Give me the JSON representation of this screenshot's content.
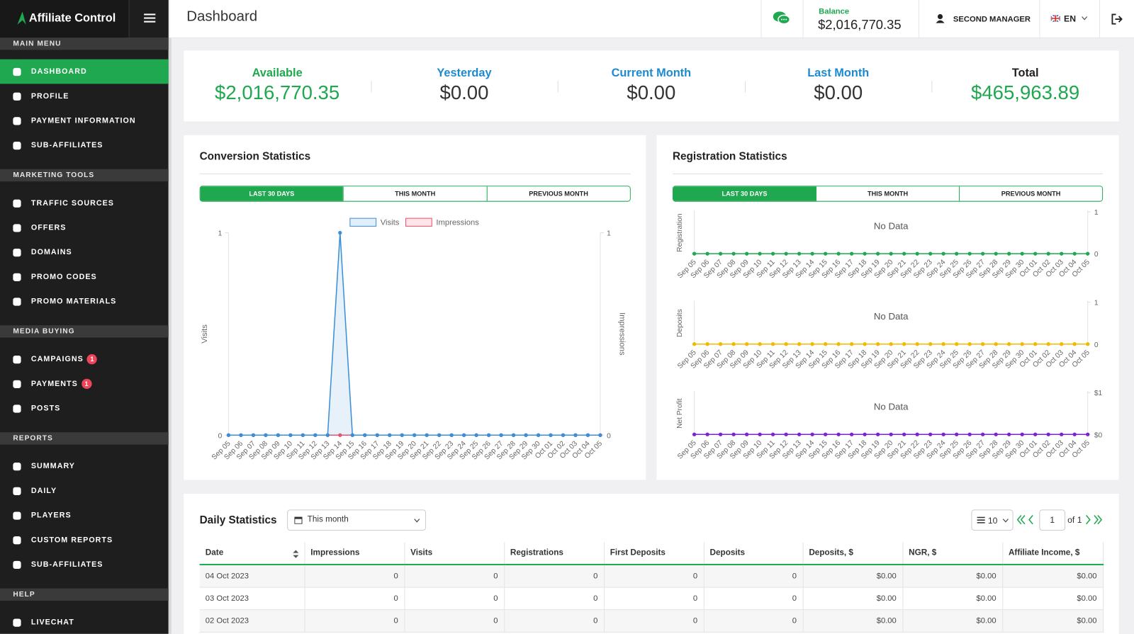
{
  "header": {
    "logo": "Affiliate Control",
    "title": "Dashboard",
    "balance_label": "Balance",
    "balance": "$2,016,770.35",
    "user": "SECOND MANAGER",
    "language": "EN"
  },
  "sidebar": [
    {
      "title": "MAIN MENU",
      "items": [
        {
          "label": "DASHBOARD",
          "active": true
        },
        {
          "label": "PROFILE"
        },
        {
          "label": "PAYMENT INFORMATION"
        },
        {
          "label": "SUB-AFFILIATES"
        }
      ]
    },
    {
      "title": "MARKETING TOOLS",
      "items": [
        {
          "label": "TRAFFIC SOURCES"
        },
        {
          "label": "OFFERS"
        },
        {
          "label": "DOMAINS"
        },
        {
          "label": "PROMO CODES"
        },
        {
          "label": "PROMO MATERIALS"
        }
      ]
    },
    {
      "title": "MEDIA BUYING",
      "items": [
        {
          "label": "CAMPAIGNS",
          "badge": 1
        },
        {
          "label": "PAYMENTS",
          "badge": 1
        },
        {
          "label": "POSTS"
        }
      ]
    },
    {
      "title": "REPORTS",
      "items": [
        {
          "label": "SUMMARY"
        },
        {
          "label": "DAILY"
        },
        {
          "label": "PLAYERS"
        },
        {
          "label": "CUSTOM REPORTS"
        },
        {
          "label": "SUB-AFFILIATES"
        }
      ]
    },
    {
      "title": "HELP",
      "items": [
        {
          "label": "LIVECHAT"
        }
      ]
    }
  ],
  "summary": [
    {
      "label": "Available",
      "value": "$2,016,770.35"
    },
    {
      "label": "Yesterday",
      "value": "$0.00"
    },
    {
      "label": "Current Month",
      "value": "$0.00"
    },
    {
      "label": "Last Month",
      "value": "$0.00"
    },
    {
      "label": "Total",
      "value": "$465,963.89"
    }
  ],
  "conversion": {
    "type": "line",
    "title": "Conversion Statistics",
    "tabs": [
      "LAST 30 DAYS",
      "THIS MONTH",
      "PREVIOUS MONTH"
    ],
    "categories": [
      "Sep 05",
      "Sep 06",
      "Sep 07",
      "Sep 08",
      "Sep 09",
      "Sep 10",
      "Sep 11",
      "Sep 12",
      "Sep 13",
      "Sep 14",
      "Sep 15",
      "Sep 16",
      "Sep 17",
      "Sep 18",
      "Sep 19",
      "Sep 20",
      "Sep 21",
      "Sep 22",
      "Sep 23",
      "Sep 24",
      "Sep 25",
      "Sep 26",
      "Sep 27",
      "Sep 28",
      "Sep 29",
      "Sep 30",
      "Oct 01",
      "Oct 02",
      "Oct 03",
      "Oct 04",
      "Oct 05"
    ],
    "series": [
      {
        "name": "Visits",
        "color": "#3b8fd9",
        "axis": "y",
        "values": [
          0,
          0,
          0,
          0,
          0,
          0,
          0,
          0,
          0,
          1,
          0,
          0,
          0,
          0,
          0,
          0,
          0,
          0,
          0,
          0,
          0,
          0,
          0,
          0,
          0,
          0,
          0,
          0,
          0,
          0,
          0
        ]
      },
      {
        "name": "Impressions",
        "color": "#f2506b",
        "axis": "y2",
        "values": [
          0,
          0,
          0,
          0,
          0,
          0,
          0,
          0,
          0,
          0,
          0,
          0,
          0,
          0,
          0,
          0,
          0,
          0,
          0,
          0,
          0,
          0,
          0,
          0,
          0,
          0,
          0,
          0,
          0,
          0,
          0
        ]
      }
    ],
    "ylabel": "Visits",
    "y2label": "Impressions",
    "ylim": [
      0,
      1
    ],
    "yticks": [
      0,
      1
    ],
    "y2lim": [
      0,
      1
    ],
    "y2ticks": [
      0,
      1
    ]
  },
  "registration": {
    "type": "line",
    "title": "Registration Statistics",
    "tabs": [
      "LAST 30 DAYS",
      "THIS MONTH",
      "PREVIOUS MONTH"
    ],
    "categories": [
      "Sep 05",
      "Sep 06",
      "Sep 07",
      "Sep 08",
      "Sep 09",
      "Sep 10",
      "Sep 11",
      "Sep 12",
      "Sep 13",
      "Sep 14",
      "Sep 15",
      "Sep 16",
      "Sep 17",
      "Sep 18",
      "Sep 19",
      "Sep 20",
      "Sep 21",
      "Sep 22",
      "Sep 23",
      "Sep 24",
      "Sep 25",
      "Sep 26",
      "Sep 27",
      "Sep 28",
      "Sep 29",
      "Sep 30",
      "Oct 01",
      "Oct 02",
      "Oct 03",
      "Oct 04",
      "Oct 05"
    ],
    "charts": [
      {
        "ylabel": "Registration",
        "message": "No Data",
        "color": "#1fa84f",
        "ylim": [
          0,
          1
        ],
        "yticks": [
          0,
          1
        ],
        "values": [
          0,
          0,
          0,
          0,
          0,
          0,
          0,
          0,
          0,
          0,
          0,
          0,
          0,
          0,
          0,
          0,
          0,
          0,
          0,
          0,
          0,
          0,
          0,
          0,
          0,
          0,
          0,
          0,
          0,
          0,
          0
        ]
      },
      {
        "ylabel": "Deposits",
        "message": "No Data",
        "color": "#f5b800",
        "ylim": [
          0,
          1
        ],
        "yticks": [
          0,
          1
        ],
        "values": [
          0,
          0,
          0,
          0,
          0,
          0,
          0,
          0,
          0,
          0,
          0,
          0,
          0,
          0,
          0,
          0,
          0,
          0,
          0,
          0,
          0,
          0,
          0,
          0,
          0,
          0,
          0,
          0,
          0,
          0,
          0
        ]
      },
      {
        "ylabel": "Net Profit",
        "message": "No Data",
        "color": "#7b22d6",
        "ylim": [
          0,
          1
        ],
        "yticks": [
          {
            "value": 0,
            "label": "$0"
          },
          {
            "value": 1,
            "label": "$1"
          }
        ],
        "values": [
          0,
          0,
          0,
          0,
          0,
          0,
          0,
          0,
          0,
          0,
          0,
          0,
          0,
          0,
          0,
          0,
          0,
          0,
          0,
          0,
          0,
          0,
          0,
          0,
          0,
          0,
          0,
          0,
          0,
          0,
          0
        ]
      }
    ]
  },
  "daily": {
    "title": "Daily Statistics",
    "period": "This month",
    "page_size": 10,
    "page": 1,
    "page_total": "of 1",
    "columns": [
      "Date",
      "Impressions",
      "Visits",
      "Registrations",
      "First Deposits",
      "Deposits",
      "Deposits, $",
      "NGR, $",
      "Affiliate Income, $"
    ],
    "rows": [
      [
        "04 Oct 2023",
        0,
        0,
        0,
        0,
        0,
        "$0.00",
        "$0.00",
        "$0.00"
      ],
      [
        "03 Oct 2023",
        0,
        0,
        0,
        0,
        0,
        "$0.00",
        "$0.00",
        "$0.00"
      ],
      [
        "02 Oct 2023",
        0,
        0,
        0,
        0,
        0,
        "$0.00",
        "$0.00",
        "$0.00"
      ]
    ]
  }
}
